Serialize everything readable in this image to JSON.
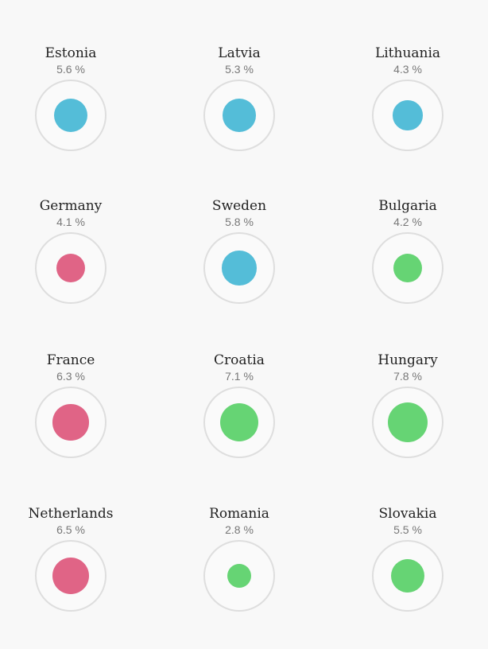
{
  "chart_data": {
    "type": "bubble-grid",
    "colors": {
      "blue": "#54bdd8",
      "pink": "#e06486",
      "green": "#66d474"
    },
    "unit": "%",
    "items": [
      {
        "country": "Estonia",
        "value": 5.6,
        "label": "5.6 %",
        "color": "blue"
      },
      {
        "country": "Latvia",
        "value": 5.3,
        "label": "5.3 %",
        "color": "blue"
      },
      {
        "country": "Lithuania",
        "value": 4.3,
        "label": "4.3 %",
        "color": "blue"
      },
      {
        "country": "Germany",
        "value": 4.1,
        "label": "4.1 %",
        "color": "pink"
      },
      {
        "country": "Sweden",
        "value": 5.8,
        "label": "5.8 %",
        "color": "blue"
      },
      {
        "country": "Bulgaria",
        "value": 4.2,
        "label": "4.2 %",
        "color": "green"
      },
      {
        "country": "France",
        "value": 6.3,
        "label": "6.3 %",
        "color": "pink"
      },
      {
        "country": "Croatia",
        "value": 7.1,
        "label": "7.1 %",
        "color": "green"
      },
      {
        "country": "Hungary",
        "value": 7.8,
        "label": "7.8 %",
        "color": "green"
      },
      {
        "country": "Netherlands",
        "value": 6.5,
        "label": "6.5 %",
        "color": "pink"
      },
      {
        "country": "Romania",
        "value": 2.8,
        "label": "2.8 %",
        "color": "green"
      },
      {
        "country": "Slovakia",
        "value": 5.5,
        "label": "5.5 %",
        "color": "green"
      }
    ]
  }
}
